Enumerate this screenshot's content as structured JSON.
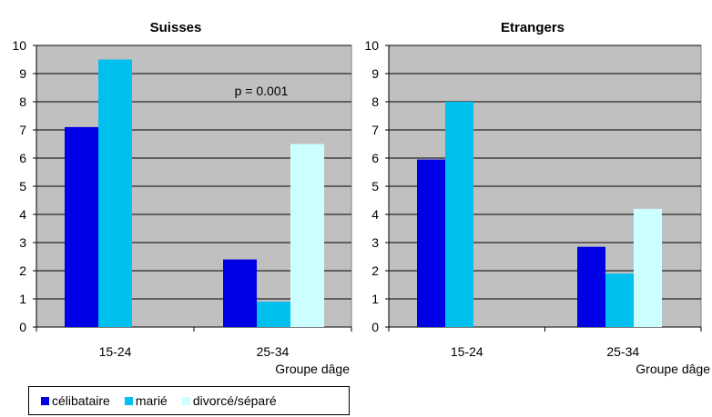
{
  "chart_data": [
    {
      "type": "bar",
      "title": "Suisses",
      "categories": [
        "15-24",
        "25-34"
      ],
      "xlabel": "Groupe dâge",
      "ylabel": "",
      "ylim": [
        0,
        10
      ],
      "yticks": [
        "0",
        "1",
        "2",
        "3",
        "4",
        "5",
        "6",
        "7",
        "8",
        "9",
        "10"
      ],
      "grid": true,
      "annotation": "p = 0.001",
      "series": [
        {
          "name": "célibataire",
          "values": [
            7.1,
            2.4
          ]
        },
        {
          "name": "marié",
          "values": [
            9.5,
            0.9
          ]
        },
        {
          "name": "divorcé/séparé",
          "values": [
            null,
            6.5
          ]
        }
      ]
    },
    {
      "type": "bar",
      "title": "Etrangers",
      "categories": [
        "15-24",
        "25-34"
      ],
      "xlabel": "Groupe dâge",
      "ylabel": "",
      "ylim": [
        0,
        10
      ],
      "yticks": [
        "0",
        "1",
        "2",
        "3",
        "4",
        "5",
        "6",
        "7",
        "8",
        "9",
        "10"
      ],
      "grid": true,
      "series": [
        {
          "name": "célibataire",
          "values": [
            5.95,
            2.85
          ]
        },
        {
          "name": "marié",
          "values": [
            8.0,
            1.9
          ]
        },
        {
          "name": "divorcé/séparé",
          "values": [
            null,
            4.2
          ]
        }
      ]
    }
  ],
  "colors": {
    "célibataire": "#0000e6",
    "marié": "#00c0f0",
    "divorcé/séparé": "#ccffff",
    "plot_background": "#c0c0c0"
  },
  "legend": {
    "placement": "bottom-left",
    "items": [
      {
        "label": "célibataire",
        "icon": "blue-square"
      },
      {
        "label": "marié",
        "icon": "cyan-square"
      },
      {
        "label": "divorcé/séparé",
        "icon": "light-cyan-square"
      }
    ]
  }
}
